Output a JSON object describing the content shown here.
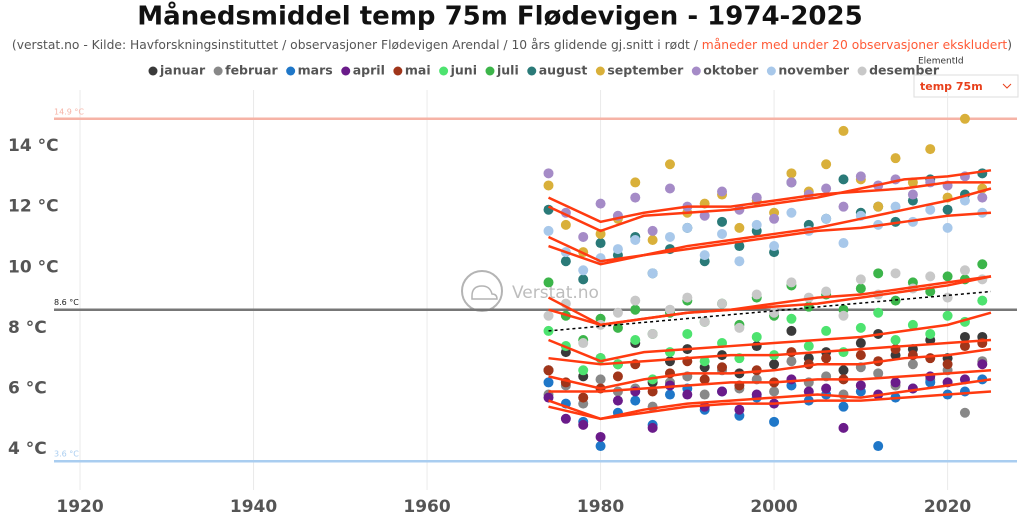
{
  "chart_data": {
    "type": "scatter",
    "title": "Månedsmiddel temp 75m Flødevigen -  1974-2025",
    "subtitle": "(verstat.no - Kilde: Havforskningsinstituttet / observasjoner Flødevigen Arendal / 10 års glidende gj.snitt i rødt / ",
    "subtitle_note": "måneder med under 20 observasjoner ekskludert",
    "subtitle_note_color": "#ff5a36",
    "subtitle_end": ")",
    "filter_label": "ElementId",
    "filter_value": "temp 75m",
    "watermark": "Verstat.no",
    "xlim": [
      1917,
      2028
    ],
    "ylim": [
      2.65,
      15.85
    ],
    "xticks": [
      1920,
      1940,
      1960,
      1980,
      2000,
      2020
    ],
    "yticks": [
      {
        "value": 4,
        "label": "4 °C"
      },
      {
        "value": 6,
        "label": "6 °C"
      },
      {
        "value": 8,
        "label": "8 °C"
      },
      {
        "value": 10,
        "label": "10 °C"
      },
      {
        "value": 12,
        "label": "12 °C"
      },
      {
        "value": 14,
        "label": "14 °C"
      }
    ],
    "grid": true,
    "reference_lines": [
      {
        "value": 14.9,
        "label": "14.9 °C",
        "color": "#f6b3a6"
      },
      {
        "value": 8.6,
        "label": "8.6 °C",
        "color": "#777777"
      },
      {
        "value": 3.6,
        "label": "3.6 °C",
        "color": "#a9cdf0"
      }
    ],
    "trend_line": {
      "x": [
        1974,
        2025
      ],
      "values": [
        7.9,
        9.2
      ],
      "color": "#000000"
    },
    "x": [
      1974,
      1976,
      1978,
      1980,
      1982,
      1984,
      1986,
      1988,
      1990,
      1992,
      1994,
      1996,
      1998,
      2000,
      2002,
      2004,
      2006,
      2008,
      2010,
      2012,
      2014,
      2016,
      2018,
      2020,
      2022,
      2024
    ],
    "series": [
      {
        "name": "januar",
        "color": "#3a3a3a",
        "values": [
          6.6,
          7.2,
          6.4,
          7.0,
          6.8,
          7.5,
          6.2,
          6.9,
          7.3,
          6.7,
          7.1,
          6.5,
          7.4,
          6.8,
          7.9,
          7.0,
          7.2,
          6.6,
          7.5,
          7.8,
          7.1,
          7.3,
          7.6,
          7.0,
          7.7,
          7.7
        ]
      },
      {
        "name": "februar",
        "color": "#888888",
        "values": [
          5.8,
          6.1,
          5.5,
          6.3,
          5.9,
          6.0,
          5.4,
          6.2,
          6.4,
          5.8,
          6.6,
          6.0,
          6.3,
          5.9,
          6.9,
          6.2,
          6.4,
          5.8,
          6.7,
          6.5,
          6.1,
          6.8,
          6.3,
          6.6,
          5.2,
          6.9
        ]
      },
      {
        "name": "mars",
        "color": "#1f77c8",
        "values": [
          6.2,
          5.5,
          4.9,
          4.1,
          5.2,
          5.6,
          4.8,
          5.8,
          6.0,
          5.3,
          5.9,
          5.1,
          5.7,
          4.9,
          6.1,
          5.6,
          5.8,
          5.4,
          5.9,
          4.1,
          5.7,
          6.0,
          6.2,
          5.8,
          5.9,
          6.3
        ]
      },
      {
        "name": "april",
        "color": "#6a1b8a",
        "values": [
          5.7,
          5.0,
          4.8,
          4.4,
          5.6,
          5.9,
          4.7,
          6.1,
          5.8,
          5.4,
          5.9,
          5.3,
          5.8,
          5.5,
          6.3,
          5.9,
          6.0,
          4.7,
          6.1,
          5.8,
          6.2,
          6.0,
          6.4,
          6.2,
          6.3,
          6.8
        ]
      },
      {
        "name": "mai",
        "color": "#a0351a",
        "values": [
          6.6,
          6.2,
          5.7,
          6.0,
          6.4,
          6.8,
          5.9,
          6.5,
          6.9,
          6.3,
          6.7,
          6.1,
          6.6,
          6.2,
          7.2,
          6.8,
          7.0,
          6.3,
          7.1,
          6.9,
          7.3,
          7.1,
          7.0,
          6.8,
          7.4,
          7.5
        ]
      },
      {
        "name": "juni",
        "color": "#4de36f",
        "values": [
          7.9,
          7.4,
          6.6,
          7.0,
          6.8,
          7.6,
          6.3,
          7.2,
          7.8,
          6.9,
          7.5,
          7.0,
          7.7,
          7.1,
          8.3,
          7.4,
          7.9,
          7.2,
          8.0,
          8.5,
          7.6,
          8.1,
          7.8,
          8.4,
          8.2,
          8.9
        ]
      },
      {
        "name": "juli",
        "color": "#3cb54a",
        "values": [
          9.5,
          8.4,
          7.6,
          8.3,
          8.0,
          8.6,
          7.8,
          8.5,
          8.9,
          8.2,
          8.8,
          8.1,
          9.0,
          8.4,
          9.4,
          8.7,
          9.1,
          8.6,
          9.3,
          9.8,
          8.9,
          9.5,
          9.2,
          9.7,
          9.6,
          10.1
        ]
      },
      {
        "name": "august",
        "color": "#2a7a78",
        "values": [
          11.9,
          10.2,
          9.6,
          10.8,
          10.4,
          11.0,
          9.8,
          10.6,
          11.3,
          10.2,
          11.5,
          10.7,
          11.2,
          10.5,
          12.8,
          11.4,
          11.6,
          12.9,
          11.8,
          12.0,
          11.5,
          12.2,
          12.9,
          11.9,
          12.4,
          13.1
        ]
      },
      {
        "name": "september",
        "color": "#d9b03a",
        "values": [
          12.7,
          11.4,
          10.5,
          11.1,
          11.6,
          12.8,
          10.9,
          13.4,
          11.8,
          12.1,
          12.4,
          11.3,
          12.2,
          11.8,
          13.1,
          12.5,
          13.4,
          14.5,
          12.9,
          12.0,
          13.6,
          12.8,
          13.9,
          12.3,
          14.9,
          12.6
        ]
      },
      {
        "name": "oktober",
        "color": "#a58bc7",
        "values": [
          13.1,
          11.8,
          11.0,
          12.1,
          11.7,
          12.3,
          11.2,
          12.6,
          12.0,
          11.7,
          12.5,
          11.9,
          12.3,
          11.6,
          12.8,
          12.4,
          12.6,
          12.0,
          13.0,
          12.7,
          12.9,
          12.4,
          12.8,
          12.7,
          13.0,
          12.3
        ]
      },
      {
        "name": "november",
        "color": "#a8c8ea",
        "values": [
          11.2,
          10.5,
          9.9,
          10.3,
          10.6,
          10.9,
          9.8,
          11.0,
          11.3,
          10.4,
          11.1,
          10.2,
          11.4,
          10.7,
          11.8,
          11.2,
          11.6,
          10.8,
          11.7,
          11.4,
          12.0,
          11.5,
          11.9,
          11.3,
          12.2,
          11.8
        ]
      },
      {
        "name": "desember",
        "color": "#c8c8c8",
        "values": [
          8.4,
          8.8,
          7.5,
          8.1,
          8.5,
          8.9,
          7.8,
          8.6,
          9.0,
          8.2,
          8.8,
          8.0,
          9.1,
          8.5,
          9.5,
          9.0,
          9.2,
          8.4,
          9.6,
          9.1,
          9.8,
          9.3,
          9.7,
          9.0,
          9.9,
          9.6
        ]
      }
    ],
    "moving_average": {
      "color": "#ff3a10",
      "x": [
        1974,
        1980,
        1985,
        1990,
        1995,
        2000,
        2005,
        2010,
        2015,
        2020,
        2025
      ],
      "series": [
        [
          7.0,
          6.8,
          6.9,
          7.0,
          7.1,
          7.1,
          7.2,
          7.3,
          7.4,
          7.5,
          7.6
        ],
        [
          5.9,
          5.9,
          6.0,
          6.1,
          6.2,
          6.2,
          6.3,
          6.3,
          6.4,
          6.5,
          6.6
        ],
        [
          5.6,
          5.0,
          5.2,
          5.4,
          5.5,
          5.5,
          5.6,
          5.6,
          5.7,
          5.8,
          5.9
        ],
        [
          5.4,
          5.0,
          5.3,
          5.5,
          5.6,
          5.7,
          5.8,
          5.7,
          5.9,
          6.1,
          6.3
        ],
        [
          6.4,
          6.0,
          6.3,
          6.5,
          6.5,
          6.6,
          6.8,
          6.8,
          7.0,
          7.1,
          7.3
        ],
        [
          7.6,
          6.9,
          7.2,
          7.3,
          7.4,
          7.5,
          7.6,
          7.7,
          7.9,
          8.1,
          8.5
        ],
        [
          9.0,
          8.1,
          8.3,
          8.5,
          8.6,
          8.7,
          8.8,
          9.0,
          9.2,
          9.4,
          9.7
        ],
        [
          11.0,
          10.2,
          10.4,
          10.7,
          10.9,
          11.1,
          11.3,
          11.6,
          11.9,
          12.2,
          12.6
        ],
        [
          12.0,
          11.2,
          11.7,
          11.8,
          11.9,
          12.1,
          12.3,
          12.6,
          12.9,
          13.0,
          13.2
        ],
        [
          12.3,
          11.5,
          11.8,
          12.0,
          12.0,
          12.2,
          12.4,
          12.5,
          12.6,
          12.8,
          12.8
        ],
        [
          10.7,
          10.1,
          10.4,
          10.6,
          10.8,
          11.0,
          11.2,
          11.3,
          11.5,
          11.7,
          11.8
        ],
        [
          8.6,
          8.1,
          8.3,
          8.5,
          8.6,
          8.8,
          9.0,
          9.1,
          9.3,
          9.5,
          9.7
        ]
      ]
    }
  }
}
